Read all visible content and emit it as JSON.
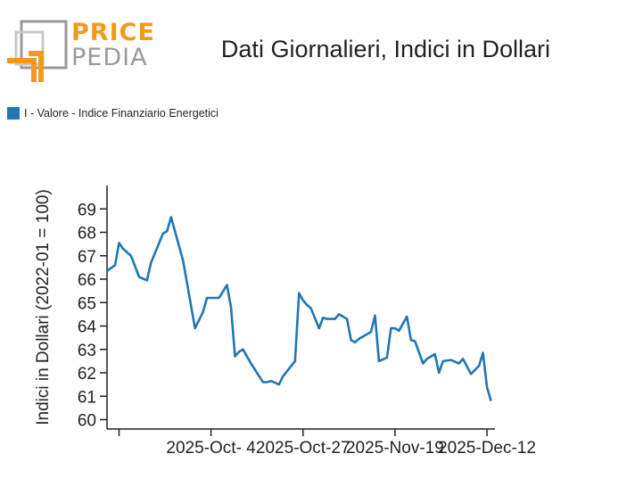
{
  "logo": {
    "word_top": "PRICE",
    "word_bottom": "PEDIA",
    "colors": {
      "orange": "#f39a1e",
      "gray": "#9a9a9a"
    }
  },
  "title": "Dati Giornalieri, Indici in Dollari",
  "legend": {
    "label": "I - Valore - Indice Finanziario Energetici",
    "color": "#1f77b4",
    "position": "top-left"
  },
  "chart_data": {
    "type": "line",
    "title": "Dati Giornalieri, Indici in Dollari",
    "xlabel": "",
    "ylabel": "Indici in Dollari (2022-01 = 100)",
    "x_tick_labels": [
      "2025-Oct- 4",
      "2025-Oct-27",
      "2025-Nov-19",
      "2025-Dec-12"
    ],
    "y_tick_labels": [
      "60",
      "61",
      "62",
      "63",
      "64",
      "65",
      "66",
      "67",
      "68",
      "69"
    ],
    "ylim": [
      59.6,
      70.0
    ],
    "xlim": [
      "2025-09-08",
      "2025-12-14"
    ],
    "grid": false,
    "series": [
      {
        "name": "I - Valore - Indice Finanziario Energetici",
        "color": "#1f77b4",
        "x": [
          "2025-09-08",
          "2025-09-10",
          "2025-09-11",
          "2025-09-12",
          "2025-09-14",
          "2025-09-16",
          "2025-09-18",
          "2025-09-19",
          "2025-09-22",
          "2025-09-23",
          "2025-09-24",
          "2025-09-27",
          "2025-09-30",
          "2025-10-02",
          "2025-10-03",
          "2025-10-06",
          "2025-10-08",
          "2025-10-09",
          "2025-10-10",
          "2025-10-11",
          "2025-10-12",
          "2025-10-14",
          "2025-10-17",
          "2025-10-18",
          "2025-10-19",
          "2025-10-21",
          "2025-10-22",
          "2025-10-25",
          "2025-10-26",
          "2025-10-27",
          "2025-10-28",
          "2025-10-29",
          "2025-10-31",
          "2025-11-01",
          "2025-11-02",
          "2025-11-04",
          "2025-11-05",
          "2025-11-07",
          "2025-11-08",
          "2025-11-09",
          "2025-11-10",
          "2025-11-12",
          "2025-11-13",
          "2025-11-14",
          "2025-11-15",
          "2025-11-17",
          "2025-11-18",
          "2025-11-19",
          "2025-11-20",
          "2025-11-22",
          "2025-11-23",
          "2025-11-24",
          "2025-11-26",
          "2025-11-27",
          "2025-11-29",
          "2025-11-30",
          "2025-12-01",
          "2025-12-03",
          "2025-12-05",
          "2025-12-06",
          "2025-12-08",
          "2025-12-10",
          "2025-12-11",
          "2025-12-12",
          "2025-12-13"
        ],
        "values": [
          66.35,
          66.6,
          67.55,
          67.3,
          67.0,
          66.1,
          65.95,
          66.7,
          67.95,
          68.05,
          68.65,
          66.8,
          63.9,
          64.6,
          65.2,
          65.2,
          65.75,
          64.8,
          62.7,
          62.9,
          63.0,
          62.4,
          61.6,
          61.6,
          61.65,
          61.5,
          61.85,
          62.5,
          65.4,
          65.1,
          64.9,
          64.75,
          63.9,
          64.35,
          64.3,
          64.3,
          64.5,
          64.3,
          63.4,
          63.3,
          63.45,
          63.65,
          63.75,
          64.45,
          62.5,
          62.65,
          63.9,
          63.9,
          63.8,
          64.4,
          63.4,
          63.35,
          62.4,
          62.6,
          62.8,
          62.0,
          62.5,
          62.55,
          62.4,
          62.6,
          61.95,
          62.3,
          62.85,
          61.4,
          60.8
        ]
      }
    ]
  }
}
